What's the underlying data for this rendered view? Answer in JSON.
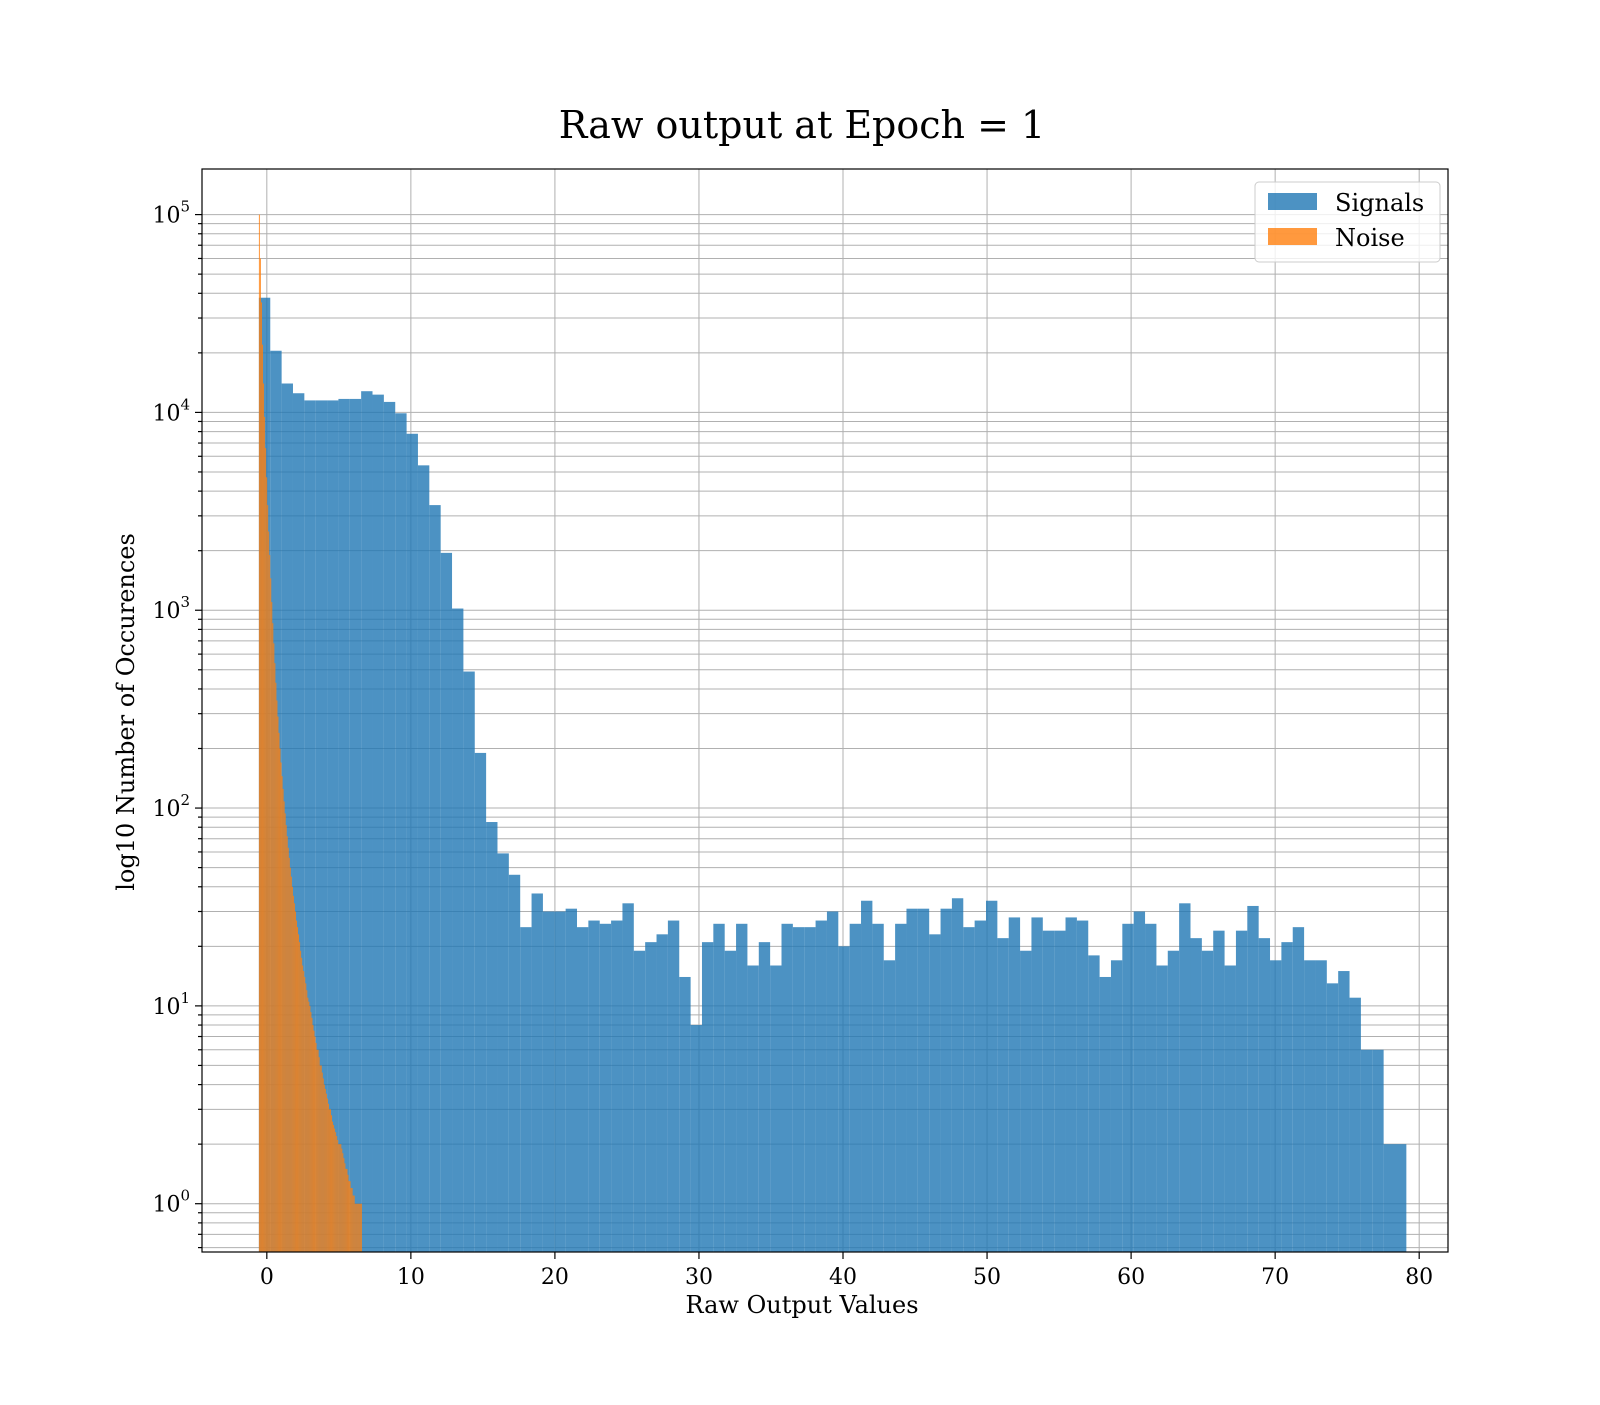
{
  "chart_data": {
    "type": "bar",
    "title": "Raw output at Epoch = 1",
    "xlabel": "Raw Output Values",
    "ylabel": "log10 Number of Occurences",
    "xlim": [
      -4.5,
      82
    ],
    "ylim": [
      0.57,
      170000
    ],
    "y_scale": "log",
    "x_ticks": [
      0,
      10,
      20,
      30,
      40,
      50,
      60,
      70,
      80
    ],
    "y_ticks": [
      {
        "value": 1,
        "base": "10",
        "exp": "0"
      },
      {
        "value": 10,
        "base": "10",
        "exp": "1"
      },
      {
        "value": 100,
        "base": "10",
        "exp": "2"
      },
      {
        "value": 1000,
        "base": "10",
        "exp": "3"
      },
      {
        "value": 10000,
        "base": "10",
        "exp": "4"
      },
      {
        "value": 100000,
        "base": "10",
        "exp": "5"
      }
    ],
    "grid": true,
    "legend_position": "top-right",
    "series": [
      {
        "name": "Signals",
        "color": "#1f77b4",
        "alpha": 0.8,
        "bin_start": -0.55,
        "bin_width": 0.7887,
        "values": [
          38000,
          20500,
          14000,
          12500,
          11500,
          11500,
          11500,
          11700,
          11700,
          12800,
          12300,
          11300,
          9900,
          7800,
          5400,
          3400,
          1950,
          1020,
          490,
          190,
          85,
          59,
          46,
          25,
          37,
          30,
          30,
          31,
          25,
          27,
          26,
          27,
          33,
          19,
          21,
          23,
          27,
          14,
          8,
          21,
          26,
          19,
          26,
          16,
          21,
          16,
          26,
          25,
          25,
          27,
          30,
          20,
          26,
          34,
          26,
          17,
          26,
          31,
          31,
          23,
          31,
          35,
          25,
          27,
          34,
          22,
          28,
          19,
          28,
          24,
          24,
          28,
          27,
          18,
          14,
          17,
          26,
          30,
          26,
          16,
          19,
          33,
          22,
          19,
          24,
          16,
          24,
          32,
          22,
          17,
          21,
          25,
          17,
          17,
          13,
          15,
          11,
          6,
          6,
          2,
          2
        ]
      },
      {
        "name": "Noise",
        "color": "#ff7f0e",
        "alpha": 0.8,
        "bin_start": -0.55,
        "bin_width": 0.0715,
        "values": [
          100000,
          60000,
          36000,
          22000,
          14000,
          9500,
          6600,
          4700,
          3400,
          2500,
          1900,
          1450,
          1100,
          860,
          680,
          540,
          430,
          350,
          290,
          240,
          200,
          170,
          145,
          125,
          108,
          94,
          82,
          72,
          63,
          56,
          50,
          45,
          40,
          36,
          33,
          30,
          27,
          25,
          23,
          21,
          19,
          17.5,
          16,
          15,
          14,
          13,
          12,
          11,
          10.5,
          10,
          9.3,
          8.7,
          8,
          7.5,
          7,
          6.5,
          6,
          6,
          5.5,
          5,
          5,
          4.6,
          4.3,
          4,
          3.8,
          3.6,
          3.4,
          3.2,
          3,
          3,
          2.8,
          2.6,
          2.5,
          2.4,
          2.3,
          2.2,
          2.1,
          2,
          2,
          2,
          1.9,
          1.8,
          1.7,
          1.6,
          1.5,
          1.5,
          1.4,
          1.3,
          1.3,
          1.2,
          1.2,
          1.1,
          1.1,
          1,
          1,
          1,
          1,
          1,
          1,
          1
        ]
      }
    ]
  }
}
